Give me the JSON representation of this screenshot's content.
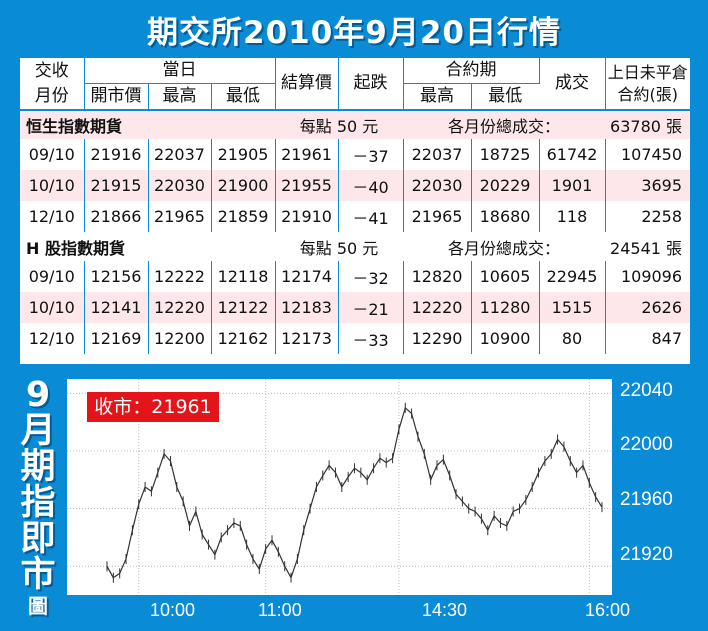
{
  "title": "期交所2010年9月20日行情",
  "table": {
    "headers": {
      "month_line1": "交收",
      "month_line2": "月份",
      "day_group": "當日",
      "open": "開市價",
      "high": "最高",
      "low": "最低",
      "settle": "結算價",
      "change": "起跌",
      "contract_group": "合約期",
      "contract_high": "最高",
      "contract_low": "最低",
      "volume": "成交",
      "oi_line1": "上日未平倉",
      "oi_line2": "合約(張)"
    },
    "sections": [
      {
        "name": "恒生指數期貨",
        "per_point": "每點 50 元",
        "total_label": "各月份總成交：",
        "total_value": "63780 張",
        "rows": [
          {
            "month": "09/10",
            "open": "21916",
            "high": "22037",
            "low": "21905",
            "settle": "21961",
            "change": "－37",
            "c_high": "22037",
            "c_low": "18725",
            "volume": "61742",
            "oi": "107450"
          },
          {
            "month": "10/10",
            "open": "21915",
            "high": "22030",
            "low": "21900",
            "settle": "21955",
            "change": "－40",
            "c_high": "22030",
            "c_low": "20229",
            "volume": "1901",
            "oi": "3695"
          },
          {
            "month": "12/10",
            "open": "21866",
            "high": "21965",
            "low": "21859",
            "settle": "21910",
            "change": "－41",
            "c_high": "21965",
            "c_low": "18680",
            "volume": "118",
            "oi": "2258"
          }
        ]
      },
      {
        "name": "H 股指數期貨",
        "per_point": "每點 50 元",
        "total_label": "各月份總成交：",
        "total_value": "24541 張",
        "rows": [
          {
            "month": "09/10",
            "open": "12156",
            "high": "12222",
            "low": "12118",
            "settle": "12174",
            "change": "－32",
            "c_high": "12820",
            "c_low": "10605",
            "volume": "22945",
            "oi": "109096"
          },
          {
            "month": "10/10",
            "open": "12141",
            "high": "12220",
            "low": "12122",
            "settle": "12183",
            "change": "－21",
            "c_high": "12220",
            "c_low": "11280",
            "volume": "1515",
            "oi": "2626"
          },
          {
            "month": "12/10",
            "open": "12169",
            "high": "12200",
            "low": "12162",
            "settle": "12173",
            "change": "－33",
            "c_high": "12290",
            "c_low": "10900",
            "volume": "80",
            "oi": "847"
          }
        ]
      }
    ]
  },
  "side_title": [
    "9",
    "月",
    "期",
    "指",
    "即",
    "市",
    "圖"
  ],
  "chart_data": {
    "type": "line",
    "badge": "收市：21961",
    "y_ticks": [
      22040,
      22000,
      21960,
      21920
    ],
    "ylim": [
      21900,
      22050
    ],
    "x_ticks": [
      "10:00",
      "11:00",
      "14:30",
      "16:00"
    ],
    "x": [
      "09:45",
      "09:48",
      "09:51",
      "09:54",
      "09:57",
      "10:00",
      "10:03",
      "10:06",
      "10:09",
      "10:12",
      "10:15",
      "10:18",
      "10:21",
      "10:24",
      "10:27",
      "10:30",
      "10:33",
      "10:36",
      "10:39",
      "10:42",
      "10:45",
      "10:48",
      "10:51",
      "10:54",
      "10:57",
      "11:00",
      "11:03",
      "11:06",
      "11:09",
      "11:12",
      "11:15",
      "11:18",
      "11:21",
      "11:24",
      "11:27",
      "11:30",
      "11:33",
      "11:36",
      "11:39",
      "11:42",
      "11:45",
      "11:48",
      "11:51",
      "11:54",
      "11:57",
      "12:00",
      "14:30",
      "14:33",
      "14:36",
      "14:39",
      "14:42",
      "14:45",
      "14:48",
      "14:51",
      "14:54",
      "14:57",
      "15:00",
      "15:03",
      "15:06",
      "15:09",
      "15:12",
      "15:15",
      "15:18",
      "15:21",
      "15:24",
      "15:27",
      "15:30",
      "15:33",
      "15:36",
      "15:39",
      "15:42",
      "15:45",
      "15:48",
      "15:51",
      "15:54",
      "15:57",
      "16:00",
      "16:03",
      "16:06"
    ],
    "values": [
      21920,
      21912,
      21915,
      21925,
      21945,
      21963,
      21975,
      21972,
      21985,
      21998,
      21993,
      21975,
      21965,
      21948,
      21958,
      21942,
      21935,
      21928,
      21940,
      21945,
      21950,
      21948,
      21935,
      21925,
      21918,
      21932,
      21938,
      21930,
      21920,
      21912,
      21925,
      21945,
      21960,
      21975,
      21983,
      21990,
      21985,
      21975,
      21982,
      21988,
      21985,
      21980,
      21988,
      21995,
      21992,
      21995,
      22015,
      22030,
      22026,
      22010,
      21998,
      21980,
      21990,
      21994,
      21983,
      21970,
      21965,
      21960,
      21958,
      21953,
      21945,
      21955,
      21950,
      21948,
      21958,
      21960,
      21966,
      21975,
      21985,
      21993,
      21998,
      22008,
      22003,
      21993,
      21985,
      21990,
      21978,
      21968,
      21961
    ]
  },
  "colors": {
    "background": "#0a8bd6",
    "row_tint": "#fde7ea",
    "badge": "#e3141a",
    "grid": "#bbbbbb",
    "series": "#333333"
  }
}
